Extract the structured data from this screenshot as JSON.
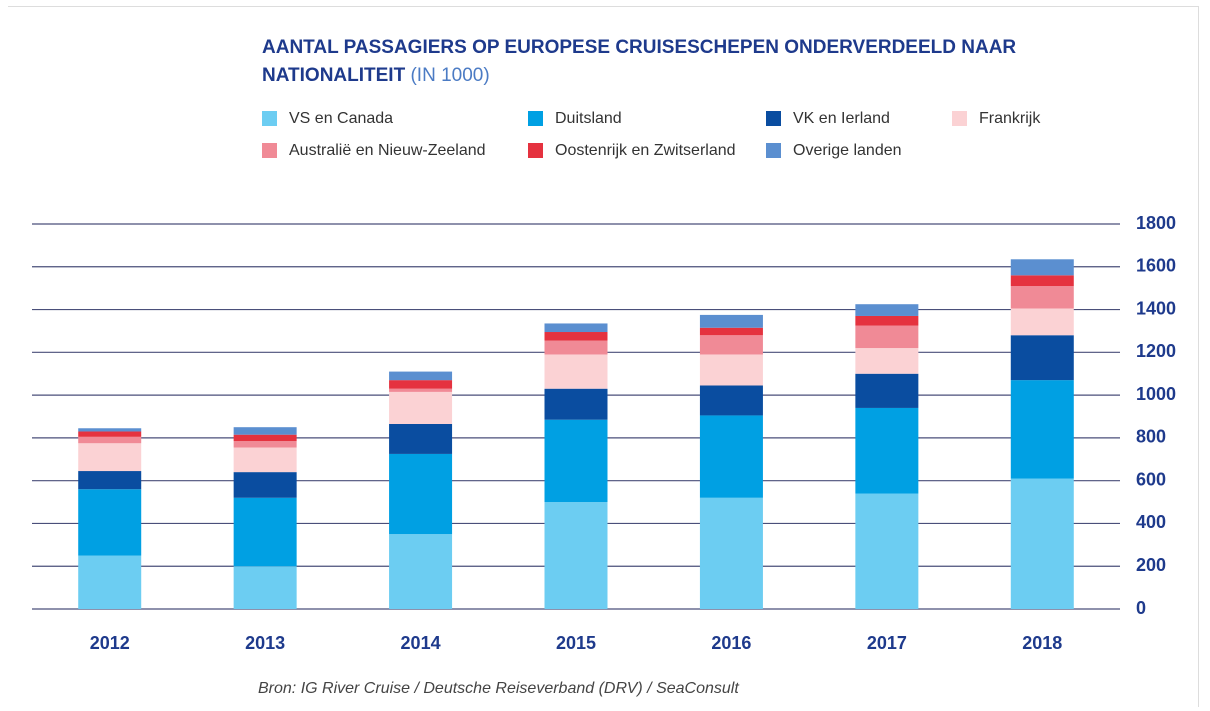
{
  "chart_data": {
    "type": "stacked_bar",
    "title": "AANTAL PASSAGIERS OP EUROPESE CRUISESCHEPEN ONDERVERDEELD NAAR NATIONALITEIT",
    "subtitle": "(IN 1000)",
    "source": "Bron: IG River Cruise / Deutsche Reiseverband (DRV) / SeaConsult",
    "categories": [
      "2012",
      "2013",
      "2014",
      "2015",
      "2016",
      "2017",
      "2018"
    ],
    "series": [
      {
        "name": "VS en Canada",
        "color": "#6ccdf2",
        "values": [
          250,
          200,
          350,
          500,
          520,
          540,
          610
        ]
      },
      {
        "name": "Duitsland",
        "color": "#00a0e3",
        "values": [
          310,
          320,
          375,
          385,
          385,
          400,
          460
        ]
      },
      {
        "name": "VK en Ierland",
        "color": "#0a4da0",
        "values": [
          85,
          120,
          140,
          145,
          140,
          160,
          210
        ]
      },
      {
        "name": "Frankrijk",
        "color": "#fbd2d4",
        "values": [
          130,
          115,
          150,
          160,
          145,
          120,
          125
        ]
      },
      {
        "name": "Australië en Nieuw-Zeeland",
        "color": "#f08a96",
        "values": [
          30,
          30,
          15,
          65,
          90,
          105,
          105
        ]
      },
      {
        "name": "Oostenrijk en Zwitserland",
        "color": "#e5323f",
        "values": [
          25,
          30,
          40,
          40,
          35,
          45,
          50
        ]
      },
      {
        "name": "Overige landen",
        "color": "#5b8fd0",
        "values": [
          15,
          35,
          40,
          40,
          60,
          55,
          75
        ]
      }
    ],
    "ylim": [
      0,
      1800
    ],
    "yticks": [
      0,
      200,
      400,
      600,
      800,
      1000,
      1200,
      1400,
      1600,
      1800
    ],
    "grid": true,
    "legend": "top"
  }
}
